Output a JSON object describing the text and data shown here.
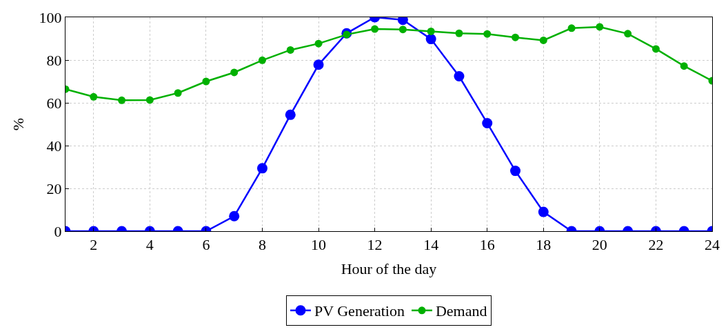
{
  "chart_data": {
    "type": "line",
    "xlabel": "Hour of the day",
    "ylabel": "%",
    "x": [
      1,
      2,
      3,
      4,
      5,
      6,
      7,
      8,
      9,
      10,
      11,
      12,
      13,
      14,
      15,
      16,
      17,
      18,
      19,
      20,
      21,
      22,
      23,
      24
    ],
    "series": [
      {
        "name": "PV Generation",
        "color": "#0000ff",
        "values": [
          0,
          0,
          0,
          0,
          0,
          0,
          7,
          29.4,
          54.4,
          77.8,
          92.5,
          100,
          98.8,
          89.8,
          72.4,
          50.5,
          28.2,
          9,
          0,
          0,
          0,
          0,
          0,
          0
        ]
      },
      {
        "name": "Demand",
        "color": "#00b000",
        "values": [
          66.4,
          62.8,
          61.2,
          61.3,
          64.6,
          70,
          74.2,
          79.9,
          84.7,
          87.7,
          91.9,
          94.5,
          94.3,
          93.4,
          92.5,
          92.2,
          90.6,
          89.2,
          94.9,
          95.5,
          92.3,
          85.2,
          77.2,
          70.3
        ]
      }
    ],
    "xlim": [
      1,
      24
    ],
    "xticks": [
      2,
      4,
      6,
      8,
      10,
      12,
      14,
      16,
      18,
      20,
      22,
      24
    ],
    "ylim": [
      0,
      100
    ],
    "yticks": [
      0,
      20,
      40,
      60,
      80,
      100
    ],
    "grid": true,
    "legend": "bottom",
    "marker": "circle",
    "line_style": "solid"
  }
}
